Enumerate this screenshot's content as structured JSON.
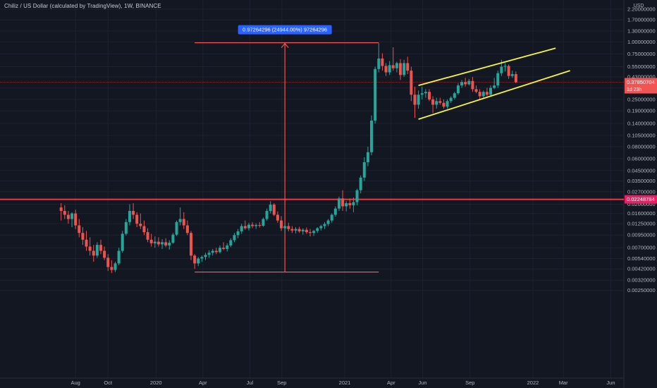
{
  "header": {
    "title": "Chiliz / US Dollar (calculated by TradingView), 1W, BINANCE"
  },
  "colors": {
    "background": "#131722",
    "grid": "#1e2230",
    "up_candle": "#26a69a",
    "down_candle": "#ef5350",
    "support_line": "#f23645",
    "channel": "#f5f542",
    "measure_tool": "#f05454",
    "price_badge": "#f05454",
    "level_badge": "#e91e63",
    "measure_label_bg": "#2962ff"
  },
  "chart_data": {
    "type": "candlestick",
    "scale": "log",
    "y_axis_unit": "USD",
    "y_ticks": [
      "2.20000000",
      "1.70000000",
      "1.30000000",
      "1.00000000",
      "0.75000000",
      "0.55000000",
      "0.43000000",
      "0.33000000",
      "0.25000000",
      "0.19000000",
      "0.14000000",
      "0.10500000",
      "0.08000000",
      "0.06000000",
      "0.04500000",
      "0.03500000",
      "0.02700000",
      "0.02000000",
      "0.01600000",
      "0.01250000",
      "0.00950000",
      "0.00700000",
      "0.00540000",
      "0.00420000",
      "0.00320000",
      "0.00250000"
    ],
    "x_ticks": [
      "Aug",
      "Oct",
      "2020",
      "Apr",
      "Jul",
      "Sep",
      "2021",
      "Apr",
      "Jun",
      "Sep",
      "2022",
      "Mar",
      "Jun"
    ],
    "current_price": "0.37850704",
    "countdown": "1d 23h",
    "horizontal_level": "0.02248784",
    "measure_label": "0.97264296 (24944.00%) 97264296",
    "grid": true,
    "channel_lines": [
      {
        "from_date": "2021-05-24",
        "from_price": 0.35,
        "to_date": "2022-02-14",
        "to_price": 0.86
      },
      {
        "from_date": "2021-05-24",
        "from_price": 0.155,
        "to_date": "2022-03-14",
        "to_price": 0.5
      }
    ],
    "candles": [
      {
        "d": "2019-07-01",
        "o": 0.0185,
        "h": 0.0205,
        "l": 0.0135,
        "c": 0.017
      },
      {
        "d": "2019-07-08",
        "o": 0.017,
        "h": 0.0195,
        "l": 0.014,
        "c": 0.0155
      },
      {
        "d": "2019-07-15",
        "o": 0.0155,
        "h": 0.017,
        "l": 0.0125,
        "c": 0.014
      },
      {
        "d": "2019-07-22",
        "o": 0.014,
        "h": 0.0165,
        "l": 0.0115,
        "c": 0.016
      },
      {
        "d": "2019-07-29",
        "o": 0.016,
        "h": 0.0175,
        "l": 0.011,
        "c": 0.012
      },
      {
        "d": "2019-08-05",
        "o": 0.012,
        "h": 0.014,
        "l": 0.009,
        "c": 0.01
      },
      {
        "d": "2019-08-12",
        "o": 0.01,
        "h": 0.0115,
        "l": 0.0075,
        "c": 0.0085
      },
      {
        "d": "2019-08-19",
        "o": 0.0085,
        "h": 0.0105,
        "l": 0.0065,
        "c": 0.0072
      },
      {
        "d": "2019-08-26",
        "o": 0.0072,
        "h": 0.009,
        "l": 0.0058,
        "c": 0.0065
      },
      {
        "d": "2019-09-02",
        "o": 0.0065,
        "h": 0.0075,
        "l": 0.005,
        "c": 0.0058
      },
      {
        "d": "2019-09-09",
        "o": 0.0058,
        "h": 0.008,
        "l": 0.0055,
        "c": 0.0075
      },
      {
        "d": "2019-09-16",
        "o": 0.0075,
        "h": 0.0085,
        "l": 0.006,
        "c": 0.0065
      },
      {
        "d": "2019-09-23",
        "o": 0.0065,
        "h": 0.0072,
        "l": 0.0052,
        "c": 0.0055
      },
      {
        "d": "2019-09-30",
        "o": 0.0055,
        "h": 0.006,
        "l": 0.004,
        "c": 0.0044
      },
      {
        "d": "2019-10-07",
        "o": 0.0044,
        "h": 0.0052,
        "l": 0.0038,
        "c": 0.0041
      },
      {
        "d": "2019-10-14",
        "o": 0.0041,
        "h": 0.005,
        "l": 0.0039,
        "c": 0.0048
      },
      {
        "d": "2019-10-21",
        "o": 0.0048,
        "h": 0.007,
        "l": 0.0046,
        "c": 0.0065
      },
      {
        "d": "2019-10-28",
        "o": 0.0065,
        "h": 0.0105,
        "l": 0.0062,
        "c": 0.0098
      },
      {
        "d": "2019-11-04",
        "o": 0.0098,
        "h": 0.014,
        "l": 0.0094,
        "c": 0.013
      },
      {
        "d": "2019-11-11",
        "o": 0.013,
        "h": 0.02,
        "l": 0.012,
        "c": 0.017
      },
      {
        "d": "2019-11-18",
        "o": 0.017,
        "h": 0.0205,
        "l": 0.014,
        "c": 0.0155
      },
      {
        "d": "2019-11-25",
        "o": 0.0155,
        "h": 0.0165,
        "l": 0.0115,
        "c": 0.0125
      },
      {
        "d": "2019-12-02",
        "o": 0.0125,
        "h": 0.016,
        "l": 0.011,
        "c": 0.0118
      },
      {
        "d": "2019-12-09",
        "o": 0.0118,
        "h": 0.0135,
        "l": 0.0095,
        "c": 0.0102
      },
      {
        "d": "2019-12-16",
        "o": 0.0102,
        "h": 0.0112,
        "l": 0.008,
        "c": 0.0085
      },
      {
        "d": "2019-12-23",
        "o": 0.0085,
        "h": 0.0098,
        "l": 0.0072,
        "c": 0.0078
      },
      {
        "d": "2019-12-30",
        "o": 0.0078,
        "h": 0.0092,
        "l": 0.007,
        "c": 0.0081
      },
      {
        "d": "2020-01-06",
        "o": 0.0081,
        "h": 0.009,
        "l": 0.0072,
        "c": 0.0076
      },
      {
        "d": "2020-01-13",
        "o": 0.0076,
        "h": 0.0086,
        "l": 0.0068,
        "c": 0.008
      },
      {
        "d": "2020-01-20",
        "o": 0.008,
        "h": 0.0088,
        "l": 0.0071,
        "c": 0.0074
      },
      {
        "d": "2020-01-27",
        "o": 0.0074,
        "h": 0.0084,
        "l": 0.0067,
        "c": 0.0079
      },
      {
        "d": "2020-02-03",
        "o": 0.0079,
        "h": 0.01,
        "l": 0.0077,
        "c": 0.0096
      },
      {
        "d": "2020-02-10",
        "o": 0.0096,
        "h": 0.0135,
        "l": 0.0093,
        "c": 0.013
      },
      {
        "d": "2020-02-17",
        "o": 0.013,
        "h": 0.0185,
        "l": 0.012,
        "c": 0.014
      },
      {
        "d": "2020-02-24",
        "o": 0.014,
        "h": 0.0165,
        "l": 0.011,
        "c": 0.012
      },
      {
        "d": "2020-03-02",
        "o": 0.012,
        "h": 0.0135,
        "l": 0.0095,
        "c": 0.01
      },
      {
        "d": "2020-03-09",
        "o": 0.01,
        "h": 0.0105,
        "l": 0.0052,
        "c": 0.0058
      },
      {
        "d": "2020-03-16",
        "o": 0.0058,
        "h": 0.006,
        "l": 0.0042,
        "c": 0.0048
      },
      {
        "d": "2020-03-23",
        "o": 0.0048,
        "h": 0.0056,
        "l": 0.0045,
        "c": 0.0054
      },
      {
        "d": "2020-03-30",
        "o": 0.0054,
        "h": 0.0058,
        "l": 0.005,
        "c": 0.0056
      },
      {
        "d": "2020-04-06",
        "o": 0.0056,
        "h": 0.0062,
        "l": 0.0052,
        "c": 0.0059
      },
      {
        "d": "2020-04-13",
        "o": 0.0059,
        "h": 0.0066,
        "l": 0.0055,
        "c": 0.0062
      },
      {
        "d": "2020-04-20",
        "o": 0.0062,
        "h": 0.0068,
        "l": 0.0058,
        "c": 0.0065
      },
      {
        "d": "2020-04-27",
        "o": 0.0065,
        "h": 0.007,
        "l": 0.006,
        "c": 0.0063
      },
      {
        "d": "2020-05-04",
        "o": 0.0063,
        "h": 0.0074,
        "l": 0.0061,
        "c": 0.007
      },
      {
        "d": "2020-05-11",
        "o": 0.007,
        "h": 0.008,
        "l": 0.0066,
        "c": 0.0068
      },
      {
        "d": "2020-05-18",
        "o": 0.0068,
        "h": 0.0078,
        "l": 0.0064,
        "c": 0.0074
      },
      {
        "d": "2020-05-25",
        "o": 0.0074,
        "h": 0.0088,
        "l": 0.0071,
        "c": 0.0084
      },
      {
        "d": "2020-06-01",
        "o": 0.0084,
        "h": 0.01,
        "l": 0.008,
        "c": 0.0095
      },
      {
        "d": "2020-06-08",
        "o": 0.0095,
        "h": 0.011,
        "l": 0.0088,
        "c": 0.0104
      },
      {
        "d": "2020-06-15",
        "o": 0.0104,
        "h": 0.0125,
        "l": 0.0098,
        "c": 0.0118
      },
      {
        "d": "2020-06-22",
        "o": 0.0118,
        "h": 0.0135,
        "l": 0.0108,
        "c": 0.0112
      },
      {
        "d": "2020-06-29",
        "o": 0.0112,
        "h": 0.0128,
        "l": 0.0106,
        "c": 0.0122
      },
      {
        "d": "2020-07-06",
        "o": 0.0122,
        "h": 0.013,
        "l": 0.0112,
        "c": 0.0118
      },
      {
        "d": "2020-07-13",
        "o": 0.0118,
        "h": 0.0126,
        "l": 0.011,
        "c": 0.0121
      },
      {
        "d": "2020-07-20",
        "o": 0.0121,
        "h": 0.013,
        "l": 0.0114,
        "c": 0.0119
      },
      {
        "d": "2020-07-27",
        "o": 0.0119,
        "h": 0.0145,
        "l": 0.0116,
        "c": 0.014
      },
      {
        "d": "2020-08-03",
        "o": 0.014,
        "h": 0.018,
        "l": 0.0135,
        "c": 0.017
      },
      {
        "d": "2020-08-10",
        "o": 0.017,
        "h": 0.0215,
        "l": 0.016,
        "c": 0.0198
      },
      {
        "d": "2020-08-17",
        "o": 0.0198,
        "h": 0.0205,
        "l": 0.015,
        "c": 0.0155
      },
      {
        "d": "2020-08-24",
        "o": 0.0155,
        "h": 0.0168,
        "l": 0.0128,
        "c": 0.0135
      },
      {
        "d": "2020-08-31",
        "o": 0.0135,
        "h": 0.015,
        "l": 0.0105,
        "c": 0.0112
      },
      {
        "d": "2020-09-07",
        "o": 0.0112,
        "h": 0.0125,
        "l": 0.0102,
        "c": 0.0118
      },
      {
        "d": "2020-09-14",
        "o": 0.0118,
        "h": 0.0128,
        "l": 0.0104,
        "c": 0.011
      },
      {
        "d": "2020-09-21",
        "o": 0.011,
        "h": 0.0118,
        "l": 0.01,
        "c": 0.0106
      },
      {
        "d": "2020-09-28",
        "o": 0.0106,
        "h": 0.0115,
        "l": 0.0099,
        "c": 0.011
      },
      {
        "d": "2020-10-05",
        "o": 0.011,
        "h": 0.0116,
        "l": 0.01,
        "c": 0.0104
      },
      {
        "d": "2020-10-12",
        "o": 0.0104,
        "h": 0.0112,
        "l": 0.0096,
        "c": 0.0108
      },
      {
        "d": "2020-10-19",
        "o": 0.0108,
        "h": 0.0114,
        "l": 0.0098,
        "c": 0.0102
      },
      {
        "d": "2020-10-26",
        "o": 0.0102,
        "h": 0.011,
        "l": 0.0092,
        "c": 0.01
      },
      {
        "d": "2020-11-02",
        "o": 0.01,
        "h": 0.0108,
        "l": 0.0093,
        "c": 0.0105
      },
      {
        "d": "2020-11-09",
        "o": 0.0105,
        "h": 0.0115,
        "l": 0.01,
        "c": 0.0112
      },
      {
        "d": "2020-11-16",
        "o": 0.0112,
        "h": 0.0122,
        "l": 0.0106,
        "c": 0.0118
      },
      {
        "d": "2020-11-23",
        "o": 0.0118,
        "h": 0.013,
        "l": 0.011,
        "c": 0.0124
      },
      {
        "d": "2020-11-30",
        "o": 0.0124,
        "h": 0.014,
        "l": 0.0118,
        "c": 0.0135
      },
      {
        "d": "2020-12-07",
        "o": 0.0135,
        "h": 0.016,
        "l": 0.0128,
        "c": 0.0155
      },
      {
        "d": "2020-12-14",
        "o": 0.0155,
        "h": 0.019,
        "l": 0.0148,
        "c": 0.018
      },
      {
        "d": "2020-12-21",
        "o": 0.018,
        "h": 0.024,
        "l": 0.017,
        "c": 0.023
      },
      {
        "d": "2020-12-28",
        "o": 0.023,
        "h": 0.028,
        "l": 0.017,
        "c": 0.019
      },
      {
        "d": "2021-01-04",
        "o": 0.019,
        "h": 0.0215,
        "l": 0.0168,
        "c": 0.0205
      },
      {
        "d": "2021-01-11",
        "o": 0.0205,
        "h": 0.023,
        "l": 0.018,
        "c": 0.0195
      },
      {
        "d": "2021-01-18",
        "o": 0.0195,
        "h": 0.0235,
        "l": 0.0165,
        "c": 0.021
      },
      {
        "d": "2021-01-25",
        "o": 0.021,
        "h": 0.029,
        "l": 0.0195,
        "c": 0.028
      },
      {
        "d": "2021-02-01",
        "o": 0.028,
        "h": 0.04,
        "l": 0.026,
        "c": 0.038
      },
      {
        "d": "2021-02-08",
        "o": 0.038,
        "h": 0.062,
        "l": 0.035,
        "c": 0.055
      },
      {
        "d": "2021-02-15",
        "o": 0.055,
        "h": 0.08,
        "l": 0.05,
        "c": 0.07
      },
      {
        "d": "2021-02-22",
        "o": 0.07,
        "h": 0.17,
        "l": 0.065,
        "c": 0.15
      },
      {
        "d": "2021-03-01",
        "o": 0.15,
        "h": 0.55,
        "l": 0.14,
        "c": 0.52
      },
      {
        "d": "2021-03-08",
        "o": 0.52,
        "h": 0.97,
        "l": 0.48,
        "c": 0.67
      },
      {
        "d": "2021-03-15",
        "o": 0.67,
        "h": 0.76,
        "l": 0.5,
        "c": 0.56
      },
      {
        "d": "2021-03-22",
        "o": 0.56,
        "h": 0.6,
        "l": 0.44,
        "c": 0.48
      },
      {
        "d": "2021-03-29",
        "o": 0.48,
        "h": 0.63,
        "l": 0.45,
        "c": 0.57
      },
      {
        "d": "2021-04-05",
        "o": 0.57,
        "h": 0.88,
        "l": 0.5,
        "c": 0.53
      },
      {
        "d": "2021-04-12",
        "o": 0.53,
        "h": 0.62,
        "l": 0.48,
        "c": 0.6
      },
      {
        "d": "2021-04-19",
        "o": 0.6,
        "h": 0.66,
        "l": 0.4,
        "c": 0.45
      },
      {
        "d": "2021-04-26",
        "o": 0.45,
        "h": 0.65,
        "l": 0.43,
        "c": 0.6
      },
      {
        "d": "2021-05-03",
        "o": 0.6,
        "h": 0.7,
        "l": 0.46,
        "c": 0.5
      },
      {
        "d": "2021-05-10",
        "o": 0.5,
        "h": 0.55,
        "l": 0.24,
        "c": 0.28
      },
      {
        "d": "2021-05-17",
        "o": 0.28,
        "h": 0.34,
        "l": 0.16,
        "c": 0.22
      },
      {
        "d": "2021-05-24",
        "o": 0.22,
        "h": 0.31,
        "l": 0.2,
        "c": 0.28
      },
      {
        "d": "2021-05-31",
        "o": 0.28,
        "h": 0.34,
        "l": 0.25,
        "c": 0.29
      },
      {
        "d": "2021-06-07",
        "o": 0.29,
        "h": 0.32,
        "l": 0.26,
        "c": 0.3
      },
      {
        "d": "2021-06-14",
        "o": 0.3,
        "h": 0.32,
        "l": 0.24,
        "c": 0.25
      },
      {
        "d": "2021-06-21",
        "o": 0.25,
        "h": 0.27,
        "l": 0.18,
        "c": 0.22
      },
      {
        "d": "2021-06-28",
        "o": 0.22,
        "h": 0.26,
        "l": 0.2,
        "c": 0.24
      },
      {
        "d": "2021-07-05",
        "o": 0.24,
        "h": 0.26,
        "l": 0.22,
        "c": 0.23
      },
      {
        "d": "2021-07-12",
        "o": 0.23,
        "h": 0.25,
        "l": 0.2,
        "c": 0.21
      },
      {
        "d": "2021-07-19",
        "o": 0.21,
        "h": 0.25,
        "l": 0.2,
        "c": 0.24
      },
      {
        "d": "2021-07-26",
        "o": 0.24,
        "h": 0.27,
        "l": 0.23,
        "c": 0.26
      },
      {
        "d": "2021-08-02",
        "o": 0.26,
        "h": 0.3,
        "l": 0.25,
        "c": 0.29
      },
      {
        "d": "2021-08-09",
        "o": 0.29,
        "h": 0.37,
        "l": 0.28,
        "c": 0.35
      },
      {
        "d": "2021-08-16",
        "o": 0.35,
        "h": 0.4,
        "l": 0.33,
        "c": 0.38
      },
      {
        "d": "2021-08-23",
        "o": 0.38,
        "h": 0.42,
        "l": 0.34,
        "c": 0.36
      },
      {
        "d": "2021-08-30",
        "o": 0.36,
        "h": 0.41,
        "l": 0.35,
        "c": 0.39
      },
      {
        "d": "2021-09-06",
        "o": 0.39,
        "h": 0.43,
        "l": 0.3,
        "c": 0.32
      },
      {
        "d": "2021-09-13",
        "o": 0.32,
        "h": 0.35,
        "l": 0.29,
        "c": 0.3
      },
      {
        "d": "2021-09-20",
        "o": 0.3,
        "h": 0.32,
        "l": 0.25,
        "c": 0.27
      },
      {
        "d": "2021-09-27",
        "o": 0.27,
        "h": 0.31,
        "l": 0.26,
        "c": 0.3
      },
      {
        "d": "2021-10-04",
        "o": 0.3,
        "h": 0.33,
        "l": 0.27,
        "c": 0.28
      },
      {
        "d": "2021-10-11",
        "o": 0.28,
        "h": 0.35,
        "l": 0.27,
        "c": 0.33
      },
      {
        "d": "2021-10-18",
        "o": 0.33,
        "h": 0.42,
        "l": 0.32,
        "c": 0.35
      },
      {
        "d": "2021-10-25",
        "o": 0.35,
        "h": 0.5,
        "l": 0.33,
        "c": 0.47
      },
      {
        "d": "2021-11-01",
        "o": 0.47,
        "h": 0.65,
        "l": 0.44,
        "c": 0.55
      },
      {
        "d": "2021-11-08",
        "o": 0.55,
        "h": 0.6,
        "l": 0.49,
        "c": 0.56
      },
      {
        "d": "2021-11-15",
        "o": 0.56,
        "h": 0.58,
        "l": 0.41,
        "c": 0.44
      },
      {
        "d": "2021-11-22",
        "o": 0.44,
        "h": 0.5,
        "l": 0.42,
        "c": 0.46
      },
      {
        "d": "2021-11-29",
        "o": 0.46,
        "h": 0.49,
        "l": 0.37,
        "c": 0.3785
      }
    ]
  }
}
